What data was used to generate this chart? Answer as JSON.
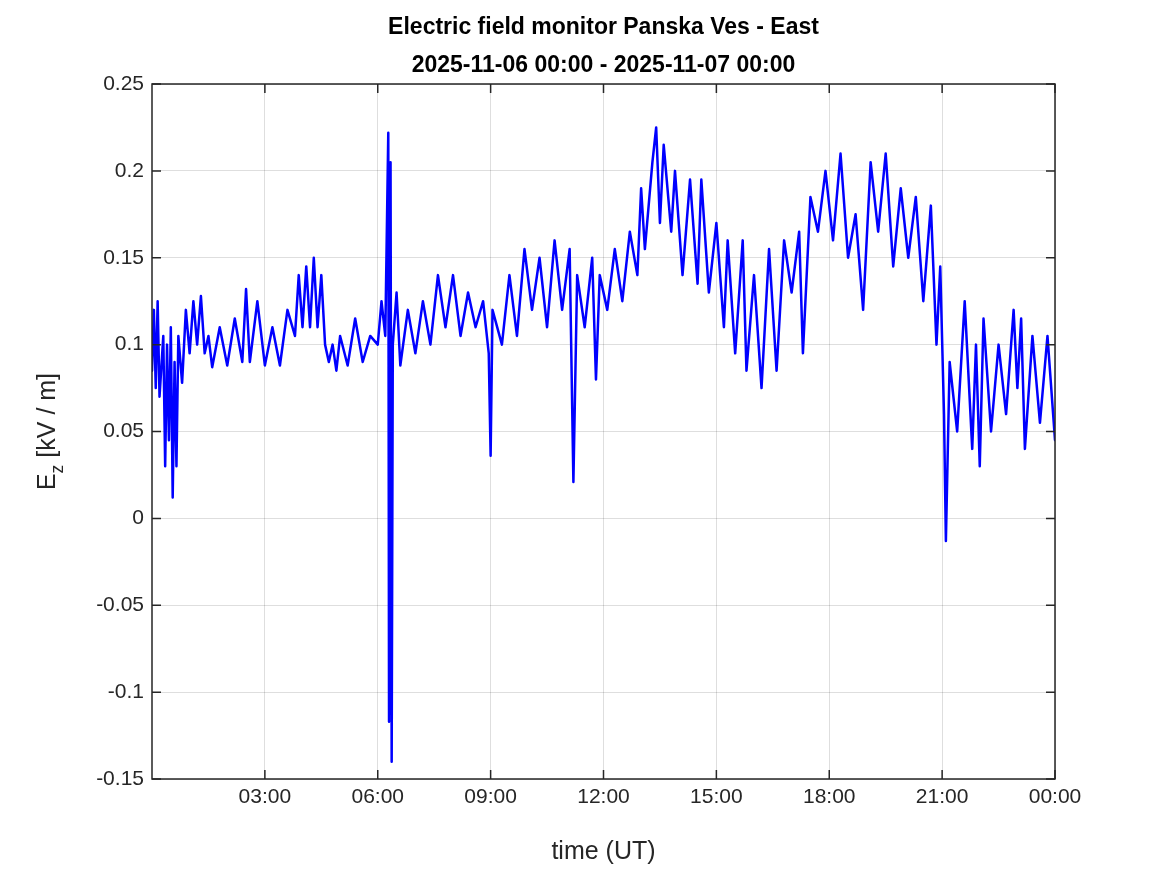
{
  "chart_data": {
    "type": "line",
    "title": "Electric field monitor Panska Ves - East",
    "subtitle": "2025-11-06 00:00 - 2025-11-07 00:00",
    "xlabel": "time (UT)",
    "ylabel": "E$_{z}$ [kV / m]",
    "xlim": [
      0,
      24
    ],
    "xticks": [
      {
        "value": 3,
        "label": "03:00"
      },
      {
        "value": 6,
        "label": "06:00"
      },
      {
        "value": 9,
        "label": "09:00"
      },
      {
        "value": 12,
        "label": "12:00"
      },
      {
        "value": 15,
        "label": "15:00"
      },
      {
        "value": 18,
        "label": "18:00"
      },
      {
        "value": 21,
        "label": "21:00"
      },
      {
        "value": 24,
        "label": "00:00"
      }
    ],
    "ylim": [
      -0.15,
      0.25
    ],
    "yticks": [
      -0.15,
      -0.1,
      -0.05,
      0,
      0.05,
      0.1,
      0.15,
      0.2,
      0.25
    ],
    "grid": true,
    "legend": false,
    "marker": "none",
    "line_style": "solid",
    "series": [
      {
        "color": "#0000ff",
        "x": [
          0,
          0.05,
          0.1,
          0.15,
          0.2,
          0.3,
          0.35,
          0.4,
          0.45,
          0.5,
          0.55,
          0.6,
          0.65,
          0.7,
          0.8,
          0.9,
          1.0,
          1.1,
          1.2,
          1.3,
          1.4,
          1.5,
          1.6,
          1.8,
          2.0,
          2.2,
          2.4,
          2.5,
          2.6,
          2.8,
          3.0,
          3.2,
          3.4,
          3.6,
          3.8,
          3.9,
          4.0,
          4.1,
          4.2,
          4.3,
          4.4,
          4.5,
          4.6,
          4.7,
          4.8,
          4.9,
          5.0,
          5.2,
          5.4,
          5.6,
          5.8,
          6.0,
          6.1,
          6.2,
          6.28,
          6.3,
          6.34,
          6.37,
          6.4,
          6.5,
          6.6,
          6.8,
          7.0,
          7.2,
          7.4,
          7.6,
          7.8,
          8.0,
          8.2,
          8.4,
          8.6,
          8.8,
          8.95,
          9.0,
          9.05,
          9.3,
          9.5,
          9.7,
          9.9,
          10.1,
          10.3,
          10.5,
          10.7,
          10.9,
          11.1,
          11.2,
          11.3,
          11.5,
          11.7,
          11.8,
          11.9,
          12.1,
          12.3,
          12.5,
          12.7,
          12.9,
          13.0,
          13.1,
          13.3,
          13.4,
          13.5,
          13.6,
          13.8,
          13.9,
          14.1,
          14.3,
          14.5,
          14.6,
          14.8,
          15.0,
          15.2,
          15.3,
          15.5,
          15.7,
          15.8,
          16.0,
          16.2,
          16.4,
          16.6,
          16.8,
          17.0,
          17.2,
          17.3,
          17.5,
          17.7,
          17.9,
          18.1,
          18.3,
          18.5,
          18.7,
          18.9,
          19.1,
          19.3,
          19.5,
          19.7,
          19.9,
          20.1,
          20.3,
          20.5,
          20.7,
          20.85,
          20.95,
          21.05,
          21.1,
          21.2,
          21.4,
          21.6,
          21.8,
          21.9,
          22.0,
          22.1,
          22.3,
          22.5,
          22.7,
          22.9,
          23.0,
          23.1,
          23.2,
          23.4,
          23.6,
          23.8,
          24.0
        ],
        "values": [
          0.085,
          0.12,
          0.075,
          0.125,
          0.07,
          0.105,
          0.03,
          0.1,
          0.045,
          0.11,
          0.012,
          0.09,
          0.03,
          0.105,
          0.078,
          0.12,
          0.095,
          0.125,
          0.1,
          0.128,
          0.095,
          0.105,
          0.087,
          0.11,
          0.088,
          0.115,
          0.09,
          0.132,
          0.09,
          0.125,
          0.088,
          0.11,
          0.088,
          0.12,
          0.105,
          0.14,
          0.11,
          0.145,
          0.11,
          0.15,
          0.11,
          0.14,
          0.1,
          0.09,
          0.1,
          0.085,
          0.105,
          0.088,
          0.115,
          0.09,
          0.105,
          0.1,
          0.125,
          0.105,
          0.222,
          -0.117,
          0.205,
          -0.14,
          0.1,
          0.13,
          0.088,
          0.12,
          0.095,
          0.125,
          0.1,
          0.14,
          0.11,
          0.14,
          0.105,
          0.13,
          0.11,
          0.125,
          0.095,
          0.036,
          0.12,
          0.1,
          0.14,
          0.105,
          0.155,
          0.12,
          0.15,
          0.11,
          0.16,
          0.12,
          0.155,
          0.021,
          0.14,
          0.11,
          0.15,
          0.08,
          0.14,
          0.12,
          0.155,
          0.125,
          0.165,
          0.14,
          0.19,
          0.155,
          0.205,
          0.225,
          0.17,
          0.215,
          0.165,
          0.2,
          0.14,
          0.195,
          0.135,
          0.195,
          0.13,
          0.17,
          0.11,
          0.16,
          0.095,
          0.16,
          0.085,
          0.14,
          0.075,
          0.155,
          0.085,
          0.16,
          0.13,
          0.165,
          0.095,
          0.185,
          0.165,
          0.2,
          0.16,
          0.21,
          0.15,
          0.175,
          0.12,
          0.205,
          0.165,
          0.21,
          0.145,
          0.19,
          0.15,
          0.185,
          0.125,
          0.18,
          0.1,
          0.145,
          0.06,
          -0.013,
          0.09,
          0.05,
          0.125,
          0.04,
          0.1,
          0.03,
          0.115,
          0.05,
          0.1,
          0.06,
          0.12,
          0.075,
          0.115,
          0.04,
          0.105,
          0.055,
          0.105,
          0.045
        ]
      }
    ]
  }
}
